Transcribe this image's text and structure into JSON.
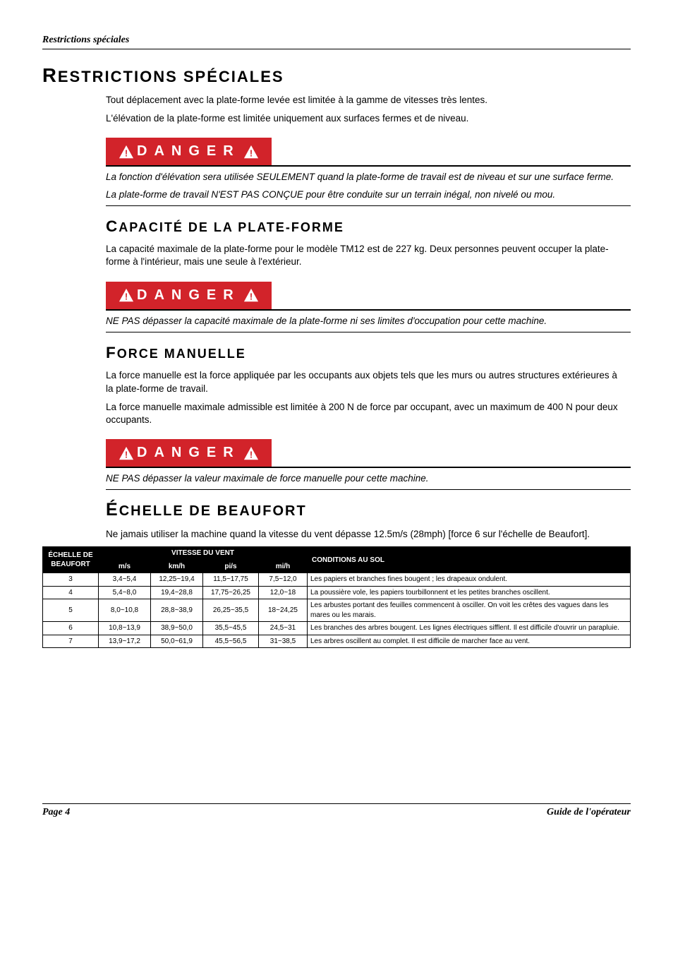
{
  "header": {
    "title": "Restrictions spéciales"
  },
  "section1": {
    "heading": "RESTRICTIONS SPÉCIALES",
    "p1": "Tout déplacement avec la plate-forme levée est limitée à la gamme de vitesses très lentes.",
    "p2": "L'élévation de la plate-forme est limitée uniquement aux surfaces fermes et de niveau."
  },
  "danger_label": "DANGER",
  "danger1": {
    "l1": "La fonction d'élévation sera utilisée SEULEMENT quand la plate-forme de travail est de niveau et sur une surface ferme.",
    "l2": "La plate-forme de travail N'EST PAS CONÇUE pour être conduite sur un terrain inégal, non nivelé ou mou."
  },
  "section2": {
    "heading": "CAPACITÉ DE LA PLATE-FORME",
    "p1": "La capacité maximale de la plate-forme pour le modèle TM12 est de 227 kg. Deux personnes peuvent occuper la plate-forme à l'intérieur, mais une seule à l'extérieur."
  },
  "danger2": {
    "l1": "NE PAS dépasser la capacité maximale de la plate-forme ni ses limites d'occupation pour cette machine."
  },
  "section3": {
    "heading": "FORCE MANUELLE",
    "p1": "La force manuelle est la force appliquée par les occupants aux objets tels que les murs ou autres structures extérieures à la plate-forme de travail.",
    "p2": "La force manuelle maximale admissible est limitée à 200 N de force par occupant, avec un maximum de 400 N pour deux occupants."
  },
  "danger3": {
    "l1": "NE PAS dépasser la valeur maximale de force manuelle pour cette machine."
  },
  "section4": {
    "heading": "ÉCHELLE DE BEAUFORT",
    "p1": "Ne jamais utiliser la machine quand la vitesse du vent dépasse 12.5m/s (28mph) [force 6 sur l'échelle de Beaufort]."
  },
  "table": {
    "col_group_left": "ÉCHELLE DE BEAUFORT",
    "col_group_wind": "VITESSE DU VENT",
    "col_ms": "m/s",
    "col_kmh": "km/h",
    "col_pis": "pi/s",
    "col_mih": "mi/h",
    "col_cond": "CONDITIONS AU SOL",
    "rows": [
      {
        "b": "3",
        "ms": "3,4~5,4",
        "kmh": "12,25~19,4",
        "pis": "11,5~17,75",
        "mih": "7,5~12,0",
        "cond": "Les papiers et branches fines bougent ; les drapeaux ondulent."
      },
      {
        "b": "4",
        "ms": "5,4~8,0",
        "kmh": "19,4~28,8",
        "pis": "17,75~26,25",
        "mih": "12,0~18",
        "cond": "La poussière vole, les papiers tourbillonnent et les petites branches oscillent."
      },
      {
        "b": "5",
        "ms": "8,0~10,8",
        "kmh": "28,8~38,9",
        "pis": "26,25~35,5",
        "mih": "18~24,25",
        "cond": "Les arbustes portant des feuilles commencent à osciller. On voit les crêtes des vagues dans les mares ou les marais."
      },
      {
        "b": "6",
        "ms": "10,8~13,9",
        "kmh": "38,9~50,0",
        "pis": "35,5~45,5",
        "mih": "24,5~31",
        "cond": "Les branches des arbres bougent. Les lignes électriques sifflent. Il est difficile d'ouvrir un parapluie."
      },
      {
        "b": "7",
        "ms": "13,9~17,2",
        "kmh": "50,0~61,9",
        "pis": "45,5~56,5",
        "mih": "31~38,5",
        "cond": "Les arbres oscillent au complet. Il est difficile de marcher face au vent."
      }
    ]
  },
  "footer": {
    "left": "Page 4",
    "right": "Guide de l'opérateur"
  },
  "colors": {
    "danger_red": "#d2232a",
    "black": "#000000",
    "white": "#ffffff"
  }
}
